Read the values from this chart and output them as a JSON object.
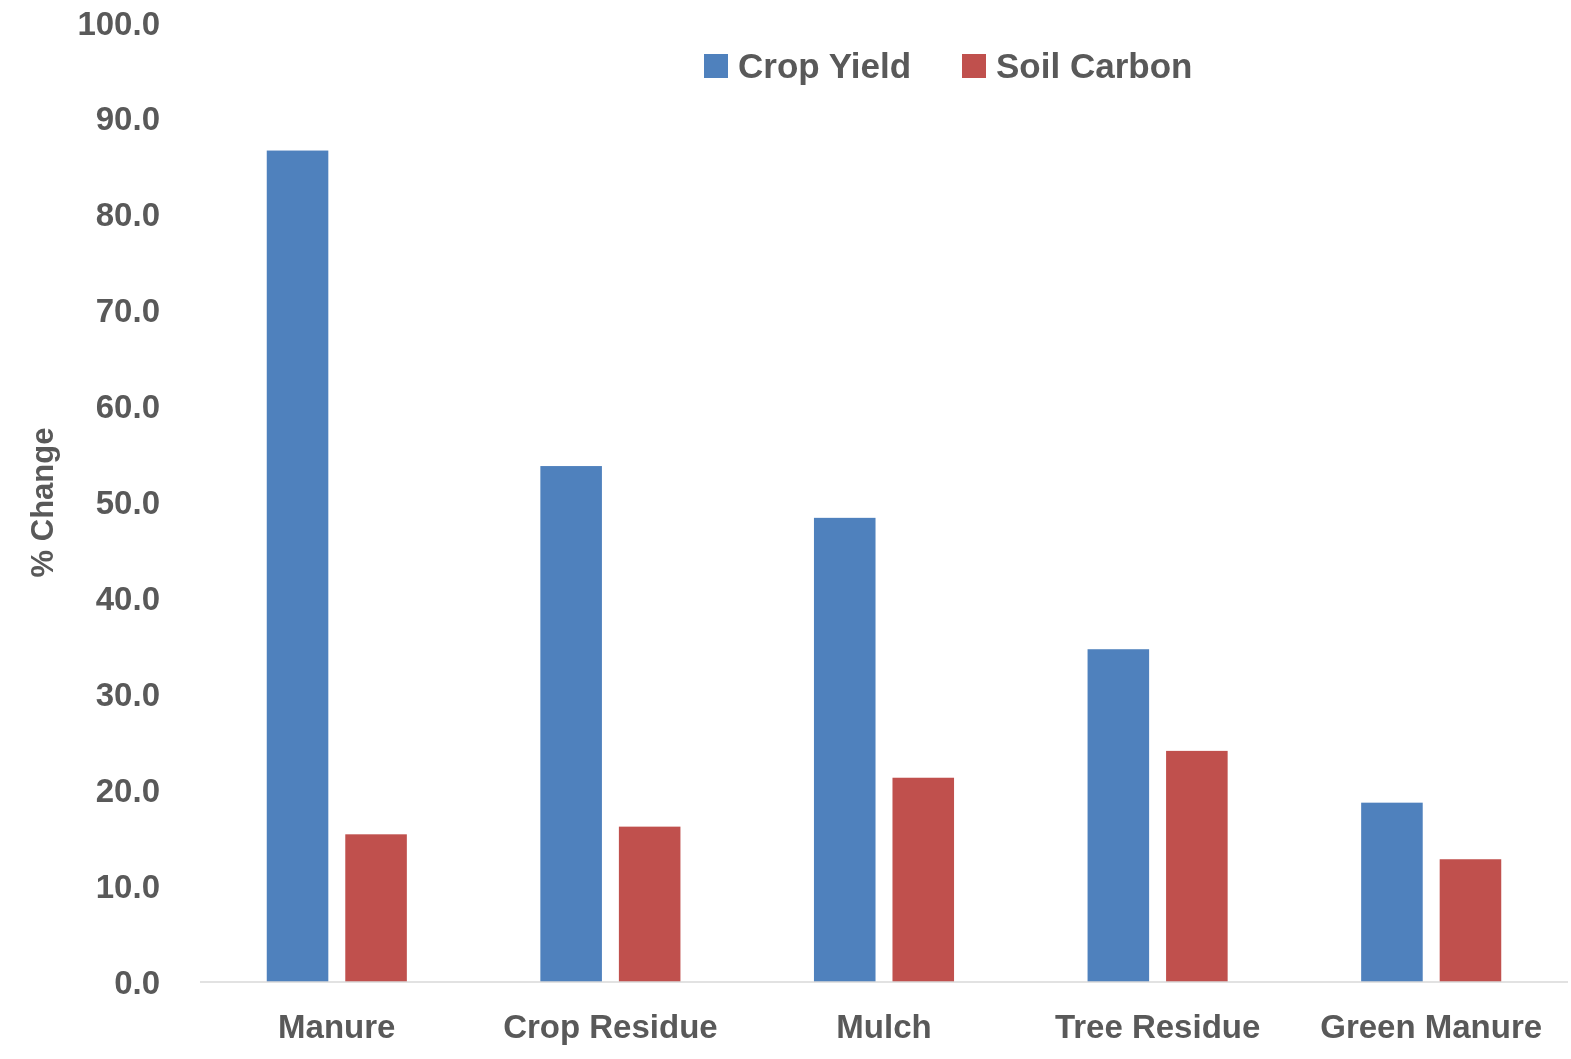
{
  "chart_data": {
    "type": "bar",
    "ylabel": "% Change",
    "categories": [
      "Manure",
      "Crop Residue",
      "Mulch",
      "Tree Residue",
      "Green Manure"
    ],
    "series": [
      {
        "name": "Crop Yield",
        "color": "#4f81bd",
        "values": [
          86.7,
          53.8,
          48.4,
          34.7,
          18.7
        ]
      },
      {
        "name": "Soil Carbon",
        "color": "#c0504d",
        "values": [
          15.4,
          16.2,
          21.3,
          24.1,
          12.8
        ]
      }
    ],
    "ylim": [
      0,
      100
    ],
    "yticks": [
      {
        "value": 0,
        "label": "0.0"
      },
      {
        "value": 10,
        "label": "10.0"
      },
      {
        "value": 20,
        "label": "20.0"
      },
      {
        "value": 30,
        "label": "30.0"
      },
      {
        "value": 40,
        "label": "40.0"
      },
      {
        "value": 50,
        "label": "50.0"
      },
      {
        "value": 60,
        "label": "60.0"
      },
      {
        "value": 70,
        "label": "70.0"
      },
      {
        "value": 80,
        "label": "80.0"
      },
      {
        "value": 90,
        "label": "90.0"
      },
      {
        "value": 100,
        "label": "100.0"
      }
    ],
    "grid": false,
    "legend": "top"
  }
}
